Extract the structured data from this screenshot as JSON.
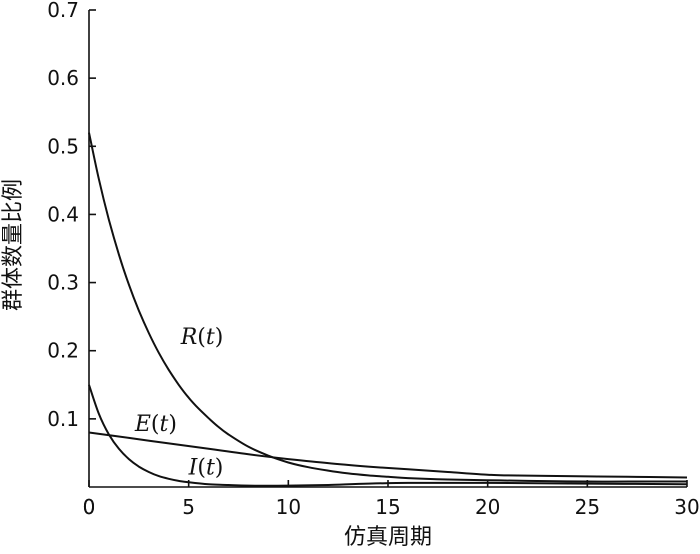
{
  "chart_data": {
    "type": "line",
    "xlabel": "仿真周期",
    "ylabel": "群体数量比例",
    "xlim": [
      0,
      30
    ],
    "ylim": [
      0,
      0.7
    ],
    "xticks": [
      0,
      5,
      10,
      15,
      20,
      25,
      30
    ],
    "yticks": [
      0.1,
      0.2,
      0.3,
      0.4,
      0.5,
      0.6,
      0.7
    ],
    "grid": false,
    "series": [
      {
        "name": "R(t)",
        "label_parts": [
          "R",
          "(",
          "t",
          ")"
        ],
        "label_anchor": [
          4.6,
          0.21
        ],
        "x": [
          0,
          0.5,
          1,
          1.5,
          2,
          2.5,
          3,
          3.5,
          4,
          4.5,
          5,
          5.5,
          6,
          6.5,
          7,
          8,
          9,
          10,
          11,
          12,
          13,
          14,
          15,
          16,
          18,
          20,
          22,
          25,
          28,
          30
        ],
        "values": [
          0.52,
          0.451,
          0.392,
          0.341,
          0.297,
          0.259,
          0.226,
          0.197,
          0.172,
          0.15,
          0.131,
          0.115,
          0.101,
          0.088,
          0.077,
          0.059,
          0.046,
          0.036,
          0.029,
          0.024,
          0.02,
          0.017,
          0.015,
          0.013,
          0.011,
          0.01,
          0.009,
          0.008,
          0.008,
          0.008
        ]
      },
      {
        "name": "E(t)",
        "label_parts": [
          "E",
          "(",
          "t",
          ")"
        ],
        "label_anchor": [
          2.3,
          0.082
        ],
        "x": [
          0,
          2,
          4,
          6,
          8,
          10,
          12,
          14,
          16,
          18,
          20,
          21,
          24,
          27,
          30
        ],
        "values": [
          0.08,
          0.072,
          0.064,
          0.056,
          0.048,
          0.041,
          0.035,
          0.03,
          0.026,
          0.022,
          0.018,
          0.017,
          0.016,
          0.015,
          0.014
        ]
      },
      {
        "name": "I(t)",
        "label_parts": [
          "I",
          "(",
          "t",
          ")"
        ],
        "label_anchor": [
          5.0,
          0.018
        ],
        "x": [
          0,
          0.5,
          1,
          1.5,
          2,
          2.5,
          3,
          3.5,
          4,
          4.5,
          5,
          6,
          7,
          8,
          10,
          12,
          14,
          16,
          18,
          20,
          25,
          30
        ],
        "values": [
          0.15,
          0.107,
          0.077,
          0.056,
          0.041,
          0.03,
          0.022,
          0.016,
          0.012,
          0.009,
          0.007,
          0.004,
          0.003,
          0.002,
          0.002,
          0.003,
          0.005,
          0.006,
          0.006,
          0.006,
          0.005,
          0.004
        ]
      }
    ]
  }
}
